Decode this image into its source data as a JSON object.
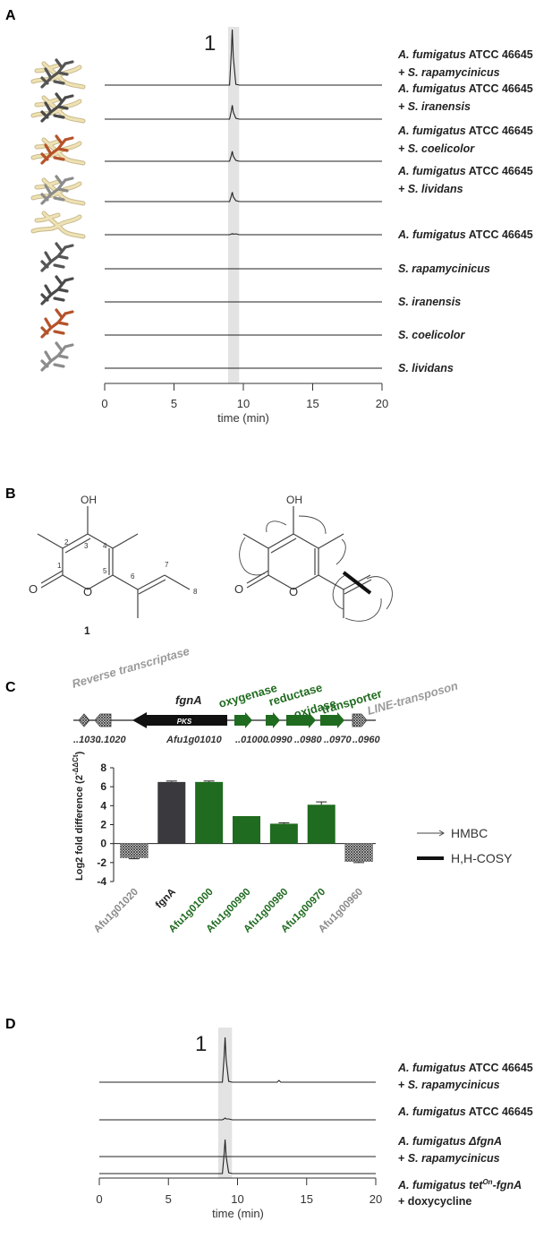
{
  "panels": {
    "a": "A",
    "b": "B",
    "c": "C",
    "d": "D"
  },
  "panel_a": {
    "peak_label": "1",
    "traces": [
      {
        "bold": "A. fumigatus",
        "rest": " ATCC 46645",
        "line2": "+ S. rapamycinicus",
        "line2_italic": "S. rapamycinicus",
        "peak": 1.0,
        "fungus": true,
        "bacteria_color": "#555555"
      },
      {
        "bold": "A. fumigatus",
        "rest": " ATCC 46645",
        "line2": "+ S. iranensis",
        "line2_italic": "S. iranensis",
        "peak": 0.25,
        "fungus": true,
        "bacteria_color": "#4a4a4a"
      },
      {
        "bold": "A. fumigatus",
        "rest": " ATCC 46645",
        "line2": "+ S. coelicolor",
        "line2_italic": "S. coelicolor",
        "peak": 0.18,
        "fungus": true,
        "bacteria_color": "#b5532a"
      },
      {
        "bold": "A. fumigatus",
        "rest": " ATCC 46645",
        "line2": "+ S. lividans",
        "line2_italic": "S. lividans",
        "peak": 0.17,
        "fungus": true,
        "bacteria_color": "#8c8c8c"
      },
      {
        "bold": "A. fumigatus",
        "rest": " ATCC 46645",
        "line2": "",
        "peak": 0.02,
        "fungus": true,
        "bacteria_color": ""
      },
      {
        "bold": "S. rapamycinicus",
        "rest": "",
        "line2": "",
        "peak": 0,
        "fungus": false,
        "bacteria_color": "#555555"
      },
      {
        "bold": "S. iranensis",
        "rest": "",
        "line2": "",
        "peak": 0,
        "fungus": false,
        "bacteria_color": "#4a4a4a"
      },
      {
        "bold": "S. coelicolor",
        "rest": "",
        "line2": "",
        "peak": 0,
        "fungus": false,
        "bacteria_color": "#b5532a"
      },
      {
        "bold": "S. lividans",
        "rest": "",
        "line2": "",
        "peak": 0,
        "fungus": false,
        "bacteria_color": "#8c8c8c"
      }
    ],
    "x_ticks": [
      "0",
      "5",
      "10",
      "15",
      "20"
    ],
    "xlabel": "time (min)"
  },
  "panel_b": {
    "oh": "OH",
    "oh2": "OH",
    "o_carbonyl": "O",
    "o_ring": "O",
    "o_carbonyl2": "O",
    "o_ring2": "O",
    "atom_numbers": [
      "1",
      "2",
      "3",
      "4",
      "5",
      "6",
      "7",
      "8"
    ],
    "compound": "1",
    "legend_hmbc": "HMBC",
    "legend_cosy": "H,H-COSY"
  },
  "panel_c": {
    "gene_labels": {
      "reverse": "Reverse transcriptase",
      "fgnA": "fgnA",
      "oxygenase": "oxygenase",
      "reductase": "reductase",
      "oxidase": "oxidase",
      "transporter": "transporter",
      "line": "LINE-transposon",
      "pks": "PKS"
    },
    "locus_labels": [
      "..1030",
      "..1020",
      "Afu1g01010",
      "..01000",
      "..0990",
      "..0980",
      "..0970",
      "..0960"
    ]
  },
  "chart_data": [
    {
      "type": "line",
      "panel": "A",
      "xlabel": "time (min)",
      "xlim": [
        0,
        20
      ],
      "x_ticks": [
        0,
        5,
        10,
        15,
        20
      ],
      "highlight_range": [
        8.9,
        9.7
      ],
      "annotation": "1",
      "series": [
        {
          "name": "A. fumigatus ATCC 46645 + S. rapamycinicus",
          "peak_time": 9.2,
          "peak_rel_height": 1.0
        },
        {
          "name": "A. fumigatus ATCC 46645 + S. iranensis",
          "peak_time": 9.2,
          "peak_rel_height": 0.25
        },
        {
          "name": "A. fumigatus ATCC 46645 + S. coelicolor",
          "peak_time": 9.2,
          "peak_rel_height": 0.18
        },
        {
          "name": "A. fumigatus ATCC 46645 + S. lividans",
          "peak_time": 9.2,
          "peak_rel_height": 0.17
        },
        {
          "name": "A. fumigatus ATCC 46645",
          "peak_time": 9.2,
          "peak_rel_height": 0.02
        },
        {
          "name": "S. rapamycinicus",
          "peak_time": null,
          "peak_rel_height": 0
        },
        {
          "name": "S. iranensis",
          "peak_time": null,
          "peak_rel_height": 0
        },
        {
          "name": "S. coelicolor",
          "peak_time": null,
          "peak_rel_height": 0
        },
        {
          "name": "S. lividans",
          "peak_time": null,
          "peak_rel_height": 0
        }
      ]
    },
    {
      "type": "bar",
      "panel": "C",
      "ylabel": "Log2 fold difference (2",
      "ylabel_sup": "-ΔΔCt",
      "ylabel_close": ")",
      "ylim": [
        -4,
        8
      ],
      "y_ticks": [
        -4,
        -2,
        0,
        2,
        4,
        6,
        8
      ],
      "categories": [
        "Afu1g01020",
        "fgnA",
        "Afu1g01000",
        "Afu1g00990",
        "Afu1g00980",
        "Afu1g00970",
        "Afu1g00960"
      ],
      "values": [
        -1.5,
        6.5,
        6.5,
        2.9,
        2.1,
        4.1,
        -1.9
      ],
      "errors": [
        0.1,
        0.1,
        0.1,
        0.0,
        0.1,
        0.3,
        0.1
      ],
      "colors": [
        "#9a9a9a",
        "#3a3a3e",
        "#1f6b1f",
        "#1f6b1f",
        "#1f6b1f",
        "#1f6b1f",
        "#9a9a9a"
      ],
      "label_colors": [
        "#8a8a8a",
        "#222222",
        "#1f6b1f",
        "#1f6b1f",
        "#1f6b1f",
        "#1f6b1f",
        "#8a8a8a"
      ]
    },
    {
      "type": "line",
      "panel": "D",
      "xlabel": "time (min)",
      "xlim": [
        0,
        20
      ],
      "x_ticks": [
        0,
        5,
        10,
        15,
        20
      ],
      "highlight_range": [
        8.6,
        9.6
      ],
      "annotation": "1",
      "series": [
        {
          "name": "A. fumigatus ATCC 46645 + S. rapamycinicus",
          "peak_time": 9.1,
          "peak_rel_height": 1.0
        },
        {
          "name": "A. fumigatus ATCC 46645",
          "peak_time": 9.1,
          "peak_rel_height": 0.04
        },
        {
          "name": "A. fumigatus ΔfgnA + S. rapamycinicus",
          "peak_time": null,
          "peak_rel_height": 0
        },
        {
          "name": "A. fumigatus tetOn-fgnA + doxycycline",
          "peak_time": 9.1,
          "peak_rel_height": 0.76
        }
      ]
    }
  ],
  "panel_d": {
    "peak_label": "1",
    "x_ticks": [
      "0",
      "5",
      "10",
      "15",
      "20"
    ],
    "xlabel": "time (min)",
    "labels": [
      {
        "l1_italic": "A. fumigatus",
        "l1_rest": " ATCC 46645",
        "l2_pre": "+ ",
        "l2_italic": "S. rapamycinicus"
      },
      {
        "l1_italic": "A. fumigatus",
        "l1_rest": " ATCC 46645",
        "l2_pre": "",
        "l2_italic": ""
      },
      {
        "l1_italic": "A. fumigatus ΔfgnA",
        "l1_rest": "",
        "l2_pre": "+ ",
        "l2_italic": "S. rapamycinicus"
      },
      {
        "l1_italic": "A. fumigatus tet",
        "l1_sup": "On",
        "l1_rest": "-fgnA",
        "l2_pre": "+ doxycycline",
        "l2_italic": ""
      }
    ]
  }
}
